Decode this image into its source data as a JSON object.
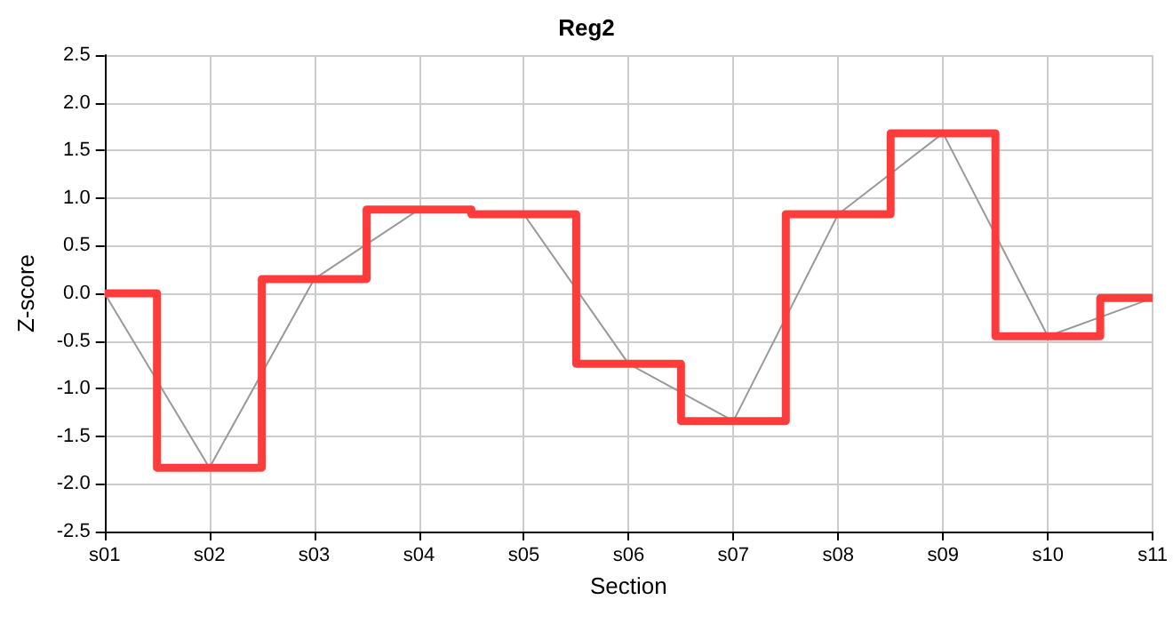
{
  "chart_data": {
    "type": "line",
    "title": "Reg2",
    "xlabel": "Section",
    "ylabel": "Z-score",
    "categories": [
      "s01",
      "s02",
      "s03",
      "s04",
      "s05",
      "s06",
      "s07",
      "s08",
      "s09",
      "s10",
      "s11"
    ],
    "series": [
      {
        "color": "#999999",
        "values": [
          0,
          -1.83,
          0.15,
          0.88,
          0.83,
          -0.74,
          -1.34,
          0.83,
          1.68,
          -0.45,
          -0.05
        ]
      },
      {
        "type": "step",
        "color": "#ff3b3b",
        "values": [
          0,
          -1.83,
          0.15,
          0.88,
          0.83,
          -0.74,
          -1.34,
          0.83,
          1.68,
          -0.45,
          -0.05
        ]
      }
    ],
    "ylim": [
      -2.5,
      2.5
    ],
    "yticks": [
      {
        "value": -2.5,
        "label": "-2.5"
      },
      {
        "value": -2,
        "label": "-2.0"
      },
      {
        "value": -1.5,
        "label": "-1.5"
      },
      {
        "value": -1,
        "label": "-1.0"
      },
      {
        "value": -0.5,
        "label": "-0.5"
      },
      {
        "value": 0,
        "label": "0.0"
      },
      {
        "value": 0.5,
        "label": "0.5"
      },
      {
        "value": 1,
        "label": "1.0"
      },
      {
        "value": 1.5,
        "label": "1.5"
      },
      {
        "value": 2,
        "label": "2.0"
      },
      {
        "value": 2.5,
        "label": "2.5"
      }
    ],
    "grid": true,
    "marker": "none"
  }
}
